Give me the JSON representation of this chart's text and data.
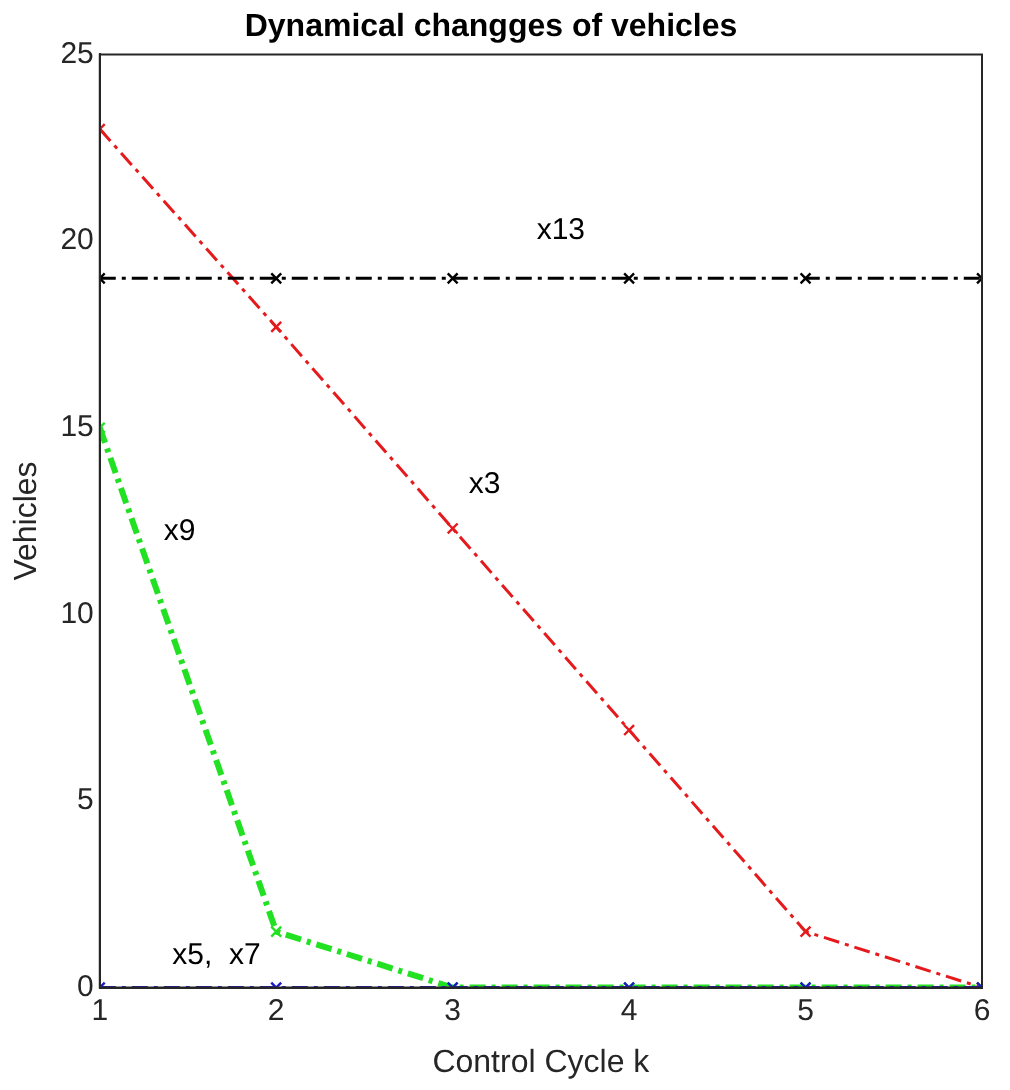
{
  "chart_data": {
    "type": "line",
    "title": "Dynamical changges of vehicles",
    "xlabel": "Control Cycle k",
    "ylabel": "Vehicles",
    "x": [
      1,
      2,
      3,
      4,
      5,
      6
    ],
    "series": [
      {
        "name": "x3",
        "color": "#e41a1c",
        "values": [
          23,
          17.7,
          12.3,
          6.9,
          1.5,
          0
        ]
      },
      {
        "name": "x13",
        "color": "#000000",
        "values": [
          19,
          19,
          19,
          19,
          19,
          19
        ]
      },
      {
        "name": "x9",
        "color": "#22e022",
        "values": [
          15,
          1.5,
          0,
          0,
          0,
          0
        ]
      },
      {
        "name": "x5,  x7",
        "color": "#1a1ac8",
        "values": [
          0,
          0,
          0,
          0,
          0,
          0
        ]
      }
    ],
    "xlim": [
      1,
      6
    ],
    "xticks": [
      1,
      2,
      3,
      4,
      5,
      6
    ],
    "ylim": [
      0,
      25
    ],
    "yticks": [
      0,
      5,
      10,
      15,
      20,
      25
    ],
    "grid": false,
    "legend": false,
    "marker": "cross",
    "line_style": "dashed"
  }
}
